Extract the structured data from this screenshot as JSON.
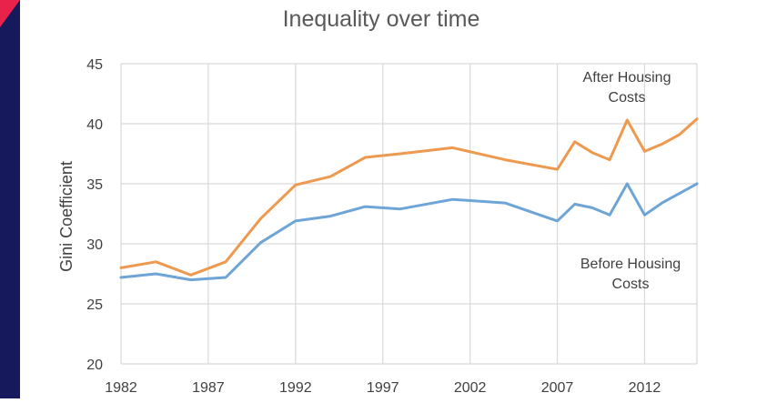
{
  "chart_data": {
    "type": "line",
    "title": "Inequality over time",
    "xlabel": "",
    "ylabel": "Gini Coefficient",
    "xlim": [
      1982,
      2015
    ],
    "ylim": [
      20,
      45
    ],
    "x_ticks": [
      "1982",
      "1987",
      "1992",
      "1997",
      "2002",
      "2007",
      "2012"
    ],
    "y_ticks": [
      "20",
      "25",
      "30",
      "35",
      "40",
      "45"
    ],
    "grid": true,
    "legend": "none",
    "series": [
      {
        "name": "After Housing Costs",
        "color": "#ed9a50",
        "x": [
          1982,
          1984,
          1986,
          1988,
          1990,
          1992,
          1994,
          1996,
          1998,
          2001,
          2004,
          2007,
          2008,
          2009,
          2010,
          2011,
          2012,
          2013,
          2014,
          2015
        ],
        "y": [
          28.0,
          28.5,
          27.4,
          28.5,
          32.1,
          34.9,
          35.6,
          37.2,
          37.5,
          38.0,
          37.0,
          36.2,
          38.5,
          37.6,
          37.0,
          40.3,
          37.7,
          38.3,
          39.1,
          40.4
        ]
      },
      {
        "name": "Before Housing Costs",
        "color": "#6ea5d6",
        "x": [
          1982,
          1984,
          1986,
          1988,
          1990,
          1992,
          1994,
          1996,
          1998,
          2001,
          2004,
          2007,
          2008,
          2009,
          2010,
          2011,
          2012,
          2013,
          2014,
          2015
        ],
        "y": [
          27.2,
          27.5,
          27.0,
          27.2,
          30.1,
          31.9,
          32.3,
          33.1,
          32.9,
          33.7,
          33.4,
          31.9,
          33.3,
          33.0,
          32.4,
          35.0,
          32.4,
          33.4,
          34.2,
          35.0
        ]
      }
    ],
    "annotations": [
      {
        "series": "After Housing Costs",
        "lines": [
          "After Housing",
          "Costs"
        ]
      },
      {
        "series": "Before Housing Costs",
        "lines": [
          "Before Housing",
          "Costs"
        ]
      }
    ]
  }
}
